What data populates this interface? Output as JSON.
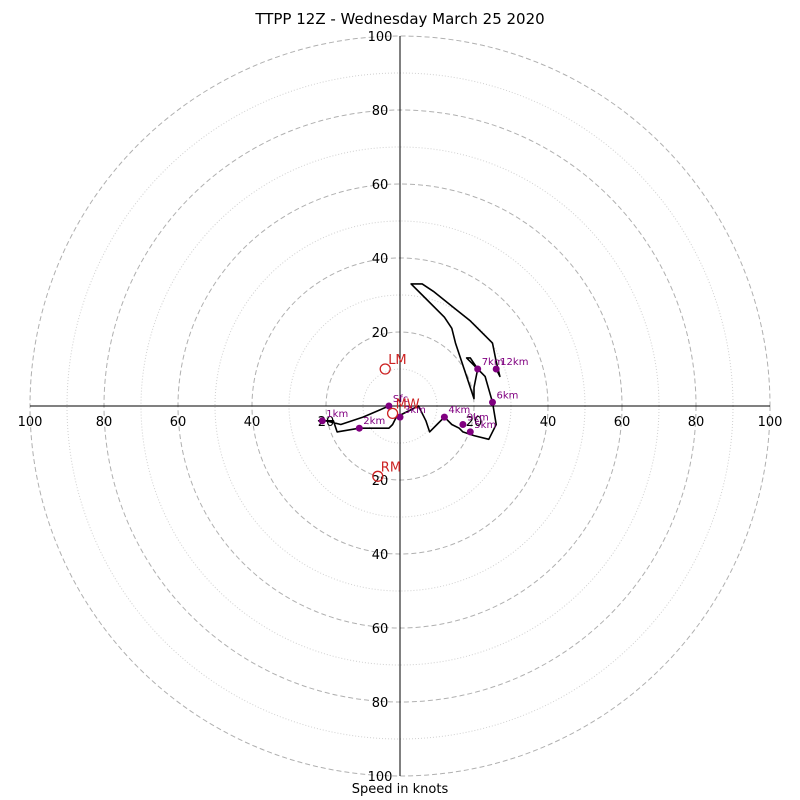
{
  "chart_data": {
    "type": "hodograph",
    "title": "TTPP 12Z - Wednesday March 25 2020",
    "xlabel": "Speed in knots",
    "ylabel": "",
    "xlim": [
      -100,
      100
    ],
    "ylim": [
      -100,
      100
    ],
    "rings": [
      10,
      20,
      30,
      40,
      50,
      60,
      70,
      80,
      90,
      100
    ],
    "ring_labels": [
      20,
      40,
      60,
      80,
      100
    ],
    "x_tick_labels": [
      "100",
      "80",
      "60",
      "40",
      "20",
      "20",
      "40",
      "60",
      "80",
      "100"
    ],
    "y_tick_labels": [
      "100",
      "80",
      "60",
      "40",
      "20",
      "20",
      "40",
      "60",
      "80",
      "100"
    ],
    "grid": true,
    "colors": {
      "line": "#000000",
      "points": "#800080",
      "motion": "#cc2222",
      "grid": "#b0b0b0"
    },
    "hodograph_uv": [
      [
        -3,
        0
      ],
      [
        -10,
        -3
      ],
      [
        -16,
        -5
      ],
      [
        -20,
        -4
      ],
      [
        -22,
        -4
      ],
      [
        -18,
        -4
      ],
      [
        -17,
        -7
      ],
      [
        -11,
        -6
      ],
      [
        -3,
        -6
      ],
      [
        -2,
        -5
      ],
      [
        -1,
        -3
      ],
      [
        1,
        -2
      ],
      [
        5,
        0
      ],
      [
        7,
        -4
      ],
      [
        8,
        -7
      ],
      [
        10,
        -5
      ],
      [
        12,
        -3
      ],
      [
        14,
        -5
      ],
      [
        16,
        -6
      ],
      [
        17,
        -7
      ],
      [
        20,
        -8
      ],
      [
        24,
        -9
      ],
      [
        26,
        -5
      ],
      [
        25,
        1
      ],
      [
        23,
        8
      ],
      [
        21,
        10
      ],
      [
        19,
        13
      ],
      [
        18,
        13
      ],
      [
        21,
        10
      ],
      [
        20,
        5
      ],
      [
        20,
        2
      ],
      [
        18,
        8
      ],
      [
        15,
        17
      ],
      [
        14,
        21
      ],
      [
        12,
        24
      ],
      [
        6,
        30
      ],
      [
        3,
        33
      ],
      [
        6,
        33
      ],
      [
        9,
        31
      ],
      [
        14,
        27
      ],
      [
        19,
        23
      ],
      [
        25,
        17
      ],
      [
        26,
        12
      ],
      [
        27,
        8
      ],
      [
        26,
        10
      ]
    ],
    "height_markers": [
      {
        "label": "Sfc",
        "u": -3,
        "v": 0
      },
      {
        "label": "1km",
        "u": -21,
        "v": -4
      },
      {
        "label": "2km",
        "u": -11,
        "v": -6
      },
      {
        "label": "3km",
        "u": 0,
        "v": -3
      },
      {
        "label": "4km",
        "u": 12,
        "v": -3
      },
      {
        "label": "5km",
        "u": 19,
        "v": -7
      },
      {
        "label": "6km",
        "u": 25,
        "v": 1
      },
      {
        "label": "7km",
        "u": 21,
        "v": 10
      },
      {
        "label": "9km",
        "u": 17,
        "v": -5
      },
      {
        "label": "12km",
        "u": 26,
        "v": 10
      }
    ],
    "storm_motion": [
      {
        "label": "LM",
        "u": -4,
        "v": 10
      },
      {
        "label": "MW",
        "u": -2,
        "v": -2
      },
      {
        "label": "RM",
        "u": -6,
        "v": -19
      }
    ]
  }
}
